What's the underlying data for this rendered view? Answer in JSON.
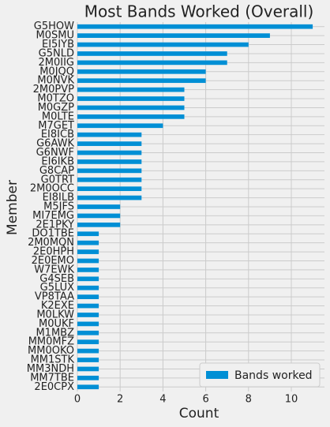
{
  "chart_data": {
    "type": "barh",
    "title": "Most Bands Worked (Overall)",
    "xlabel": "Count",
    "ylabel": "Member",
    "categories": [
      "G5HOW",
      "M0SMU",
      "EI5IYB",
      "G5NLD",
      "2M0IIG",
      "M0JQQ",
      "M0NVK",
      "2M0PVP",
      "M0TZO",
      "M0GZP",
      "M0LTE",
      "M7GET",
      "EI8ICB",
      "G6AWK",
      "G6NWF",
      "EI6IKB",
      "G8CAP",
      "G0TRT",
      "2M0OCC",
      "EI8ILB",
      "M5JFS",
      "MI7EMG",
      "2E1PKY",
      "DO1TBE",
      "2M0MQN",
      "2E0HPH",
      "2E0EMO",
      "W7EWK",
      "G4SEB",
      "G5LUX",
      "VP8TAA",
      "K2EXE",
      "M0LKW",
      "M0UKF",
      "M1MBZ",
      "MM0MFZ",
      "MM0OKO",
      "MM1STK",
      "MM3NDH",
      "MM7TBE",
      "2E0CPX"
    ],
    "series": [
      {
        "name": "Bands worked",
        "color": "#008fd5",
        "values": [
          11,
          9,
          8,
          7,
          7,
          6,
          6,
          5,
          5,
          5,
          5,
          4,
          3,
          3,
          3,
          3,
          3,
          3,
          3,
          3,
          2,
          2,
          2,
          1,
          1,
          1,
          1,
          1,
          1,
          1,
          1,
          1,
          1,
          1,
          1,
          1,
          1,
          1,
          1,
          1,
          1
        ]
      }
    ],
    "xlim": [
      0,
      11.55
    ],
    "xticks": [
      0,
      2,
      4,
      6,
      8,
      10
    ],
    "grid": true,
    "legend": "lower right"
  }
}
